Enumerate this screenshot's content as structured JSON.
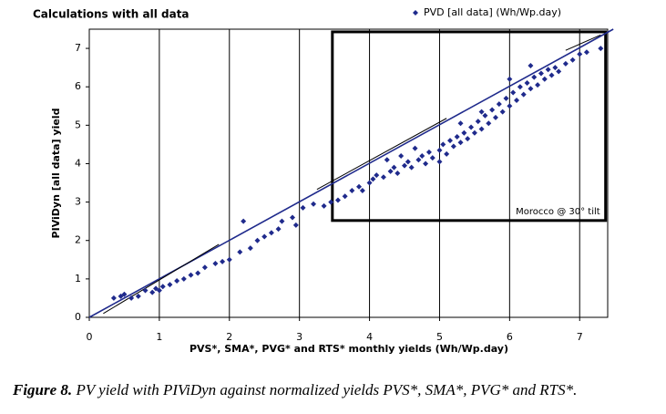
{
  "chart_data": {
    "type": "scatter",
    "title": "Calculations with all data",
    "xlabel": "PVS*, SMA*, PVG* and RTS* monthly yields (Wh/Wp.day)",
    "ylabel": "PIViDyn [all data] yield",
    "xlim": [
      0,
      7.4
    ],
    "ylim": [
      0,
      7.5
    ],
    "xticks": [
      0,
      1,
      2,
      3,
      4,
      5,
      6,
      7
    ],
    "yticks": [
      0,
      1,
      2,
      3,
      4,
      5,
      6,
      7
    ],
    "grid": "x",
    "legend": "top-right",
    "series": [
      {
        "name": "PVD [all data] (Wh/Wp.day)",
        "color": "#1f2a8c",
        "x": [
          0.35,
          0.45,
          0.5,
          0.6,
          0.7,
          0.8,
          0.9,
          0.95,
          1.0,
          1.05,
          1.15,
          1.25,
          1.35,
          1.45,
          1.55,
          1.65,
          1.8,
          1.9,
          2.0,
          2.15,
          2.3,
          2.4,
          2.5,
          2.6,
          2.7,
          2.75,
          2.9,
          3.05,
          3.2,
          3.35,
          3.45,
          3.55,
          3.65,
          3.75,
          3.85,
          3.9,
          4.0,
          4.05,
          4.1,
          4.2,
          4.3,
          4.35,
          4.4,
          4.5,
          4.55,
          4.6,
          4.7,
          4.75,
          4.8,
          4.85,
          4.9,
          5.0,
          5.05,
          5.1,
          5.15,
          5.2,
          5.25,
          5.3,
          5.35,
          5.4,
          5.45,
          5.5,
          5.55,
          5.6,
          5.65,
          5.7,
          5.75,
          5.8,
          5.85,
          5.9,
          5.95,
          6.0,
          6.05,
          6.1,
          6.15,
          6.2,
          6.25,
          6.3,
          6.35,
          6.4,
          6.45,
          6.5,
          6.55,
          6.6,
          6.65,
          6.7,
          6.8,
          6.9,
          7.0,
          7.1,
          7.3,
          2.2,
          2.95,
          4.25,
          4.65,
          5.0,
          5.6,
          6.0,
          6.3,
          5.3,
          4.45
        ],
        "y": [
          0.5,
          0.55,
          0.6,
          0.5,
          0.55,
          0.7,
          0.65,
          0.75,
          0.7,
          0.8,
          0.85,
          0.95,
          1.0,
          1.1,
          1.15,
          1.3,
          1.4,
          1.45,
          1.5,
          1.7,
          1.8,
          2.0,
          2.1,
          2.2,
          2.3,
          2.5,
          2.6,
          2.85,
          2.95,
          2.9,
          3.0,
          3.05,
          3.15,
          3.3,
          3.4,
          3.3,
          3.5,
          3.6,
          3.7,
          3.65,
          3.8,
          3.9,
          3.75,
          3.95,
          4.05,
          3.9,
          4.1,
          4.2,
          4.0,
          4.3,
          4.15,
          4.35,
          4.5,
          4.25,
          4.6,
          4.45,
          4.7,
          4.55,
          4.8,
          4.65,
          4.95,
          4.8,
          5.1,
          4.9,
          5.25,
          5.05,
          5.4,
          5.2,
          5.55,
          5.35,
          5.7,
          5.5,
          5.85,
          5.65,
          6.0,
          5.8,
          6.1,
          5.95,
          6.25,
          6.05,
          6.35,
          6.2,
          6.45,
          6.3,
          6.5,
          6.4,
          6.6,
          6.7,
          6.85,
          6.9,
          7.0,
          2.5,
          2.4,
          4.1,
          4.4,
          4.05,
          5.35,
          6.2,
          6.55,
          5.05,
          4.2
        ]
      }
    ],
    "lines": [
      {
        "x": [
          0,
          7.48
        ],
        "y": [
          0,
          7.5
        ],
        "color": "#1f2a8c"
      },
      {
        "x": [
          0.2,
          1.85
        ],
        "y": [
          0.1,
          1.9
        ],
        "color": "#000000"
      },
      {
        "x": [
          3.25,
          5.1
        ],
        "y": [
          3.33,
          5.18
        ],
        "color": "#000000"
      },
      {
        "x": [
          6.8,
          7.3
        ],
        "y": [
          6.95,
          7.35
        ],
        "color": "#000000"
      }
    ],
    "box": {
      "x": [
        3.47,
        7.37
      ],
      "y": [
        2.52,
        7.43
      ],
      "label": "Morocco @ 30° tilt"
    }
  },
  "caption_label": "Figure 8.",
  "caption": "PV yield with PIViDyn against normalized yields PVS*, SMA*, PVG* and RTS*."
}
